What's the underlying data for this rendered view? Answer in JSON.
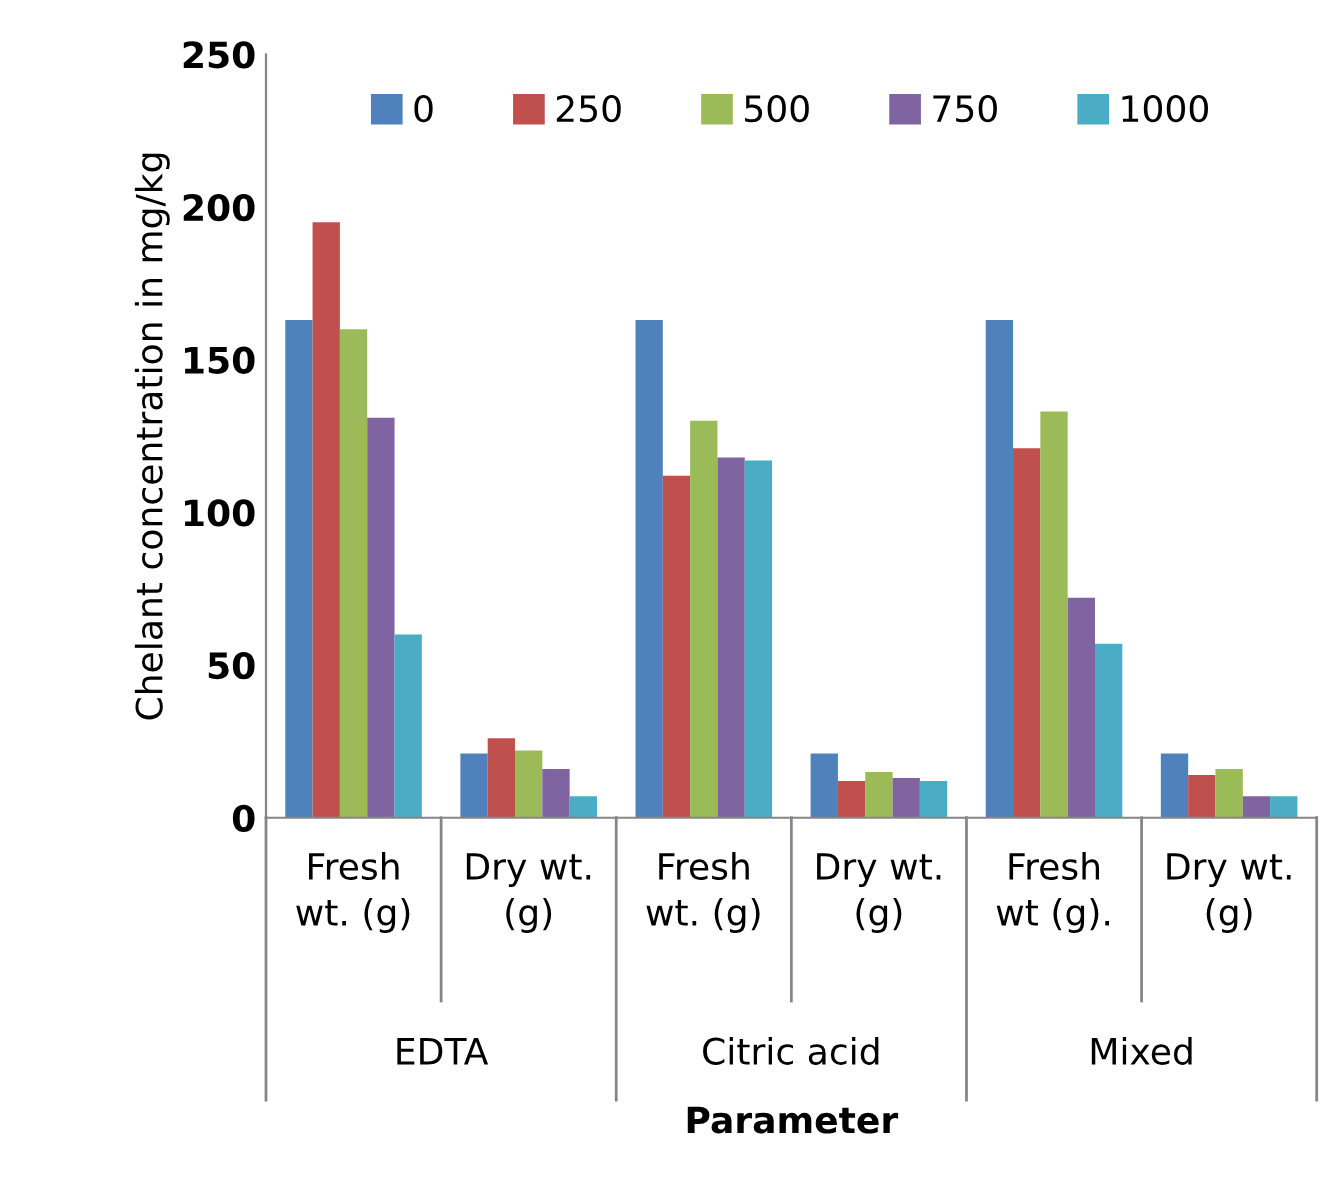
{
  "chart_data": {
    "type": "bar",
    "ylabel": "Chelant concentration in mg/kg",
    "xlabel": "Parameter",
    "categories": [
      "Fresh wt. (g)",
      "Dry wt. (g)",
      "Fresh wt. (g)",
      "Dry wt. (g)",
      "Fresh wt (g).",
      "Dry wt. (g)"
    ],
    "annotations": [
      "EDTA",
      "Citric acid",
      "Mixed"
    ],
    "series": [
      {
        "name": "0",
        "color": "#4f81bd",
        "values": [
          163,
          21,
          163,
          21,
          163,
          21
        ]
      },
      {
        "name": "250",
        "color": "#c0504d",
        "values": [
          195,
          26,
          112,
          12,
          121,
          14
        ]
      },
      {
        "name": "500",
        "color": "#9bbb59",
        "values": [
          160,
          22,
          130,
          15,
          133,
          16
        ]
      },
      {
        "name": "750",
        "color": "#8064a2",
        "values": [
          131,
          16,
          118,
          13,
          72,
          7
        ]
      },
      {
        "name": "1000",
        "color": "#4bacc6",
        "values": [
          60,
          7,
          117,
          12,
          57,
          7
        ]
      }
    ],
    "ylim": [
      0,
      250
    ],
    "yticks": [
      0,
      50,
      100,
      150,
      200,
      250
    ],
    "grid": false,
    "legend": "top"
  }
}
